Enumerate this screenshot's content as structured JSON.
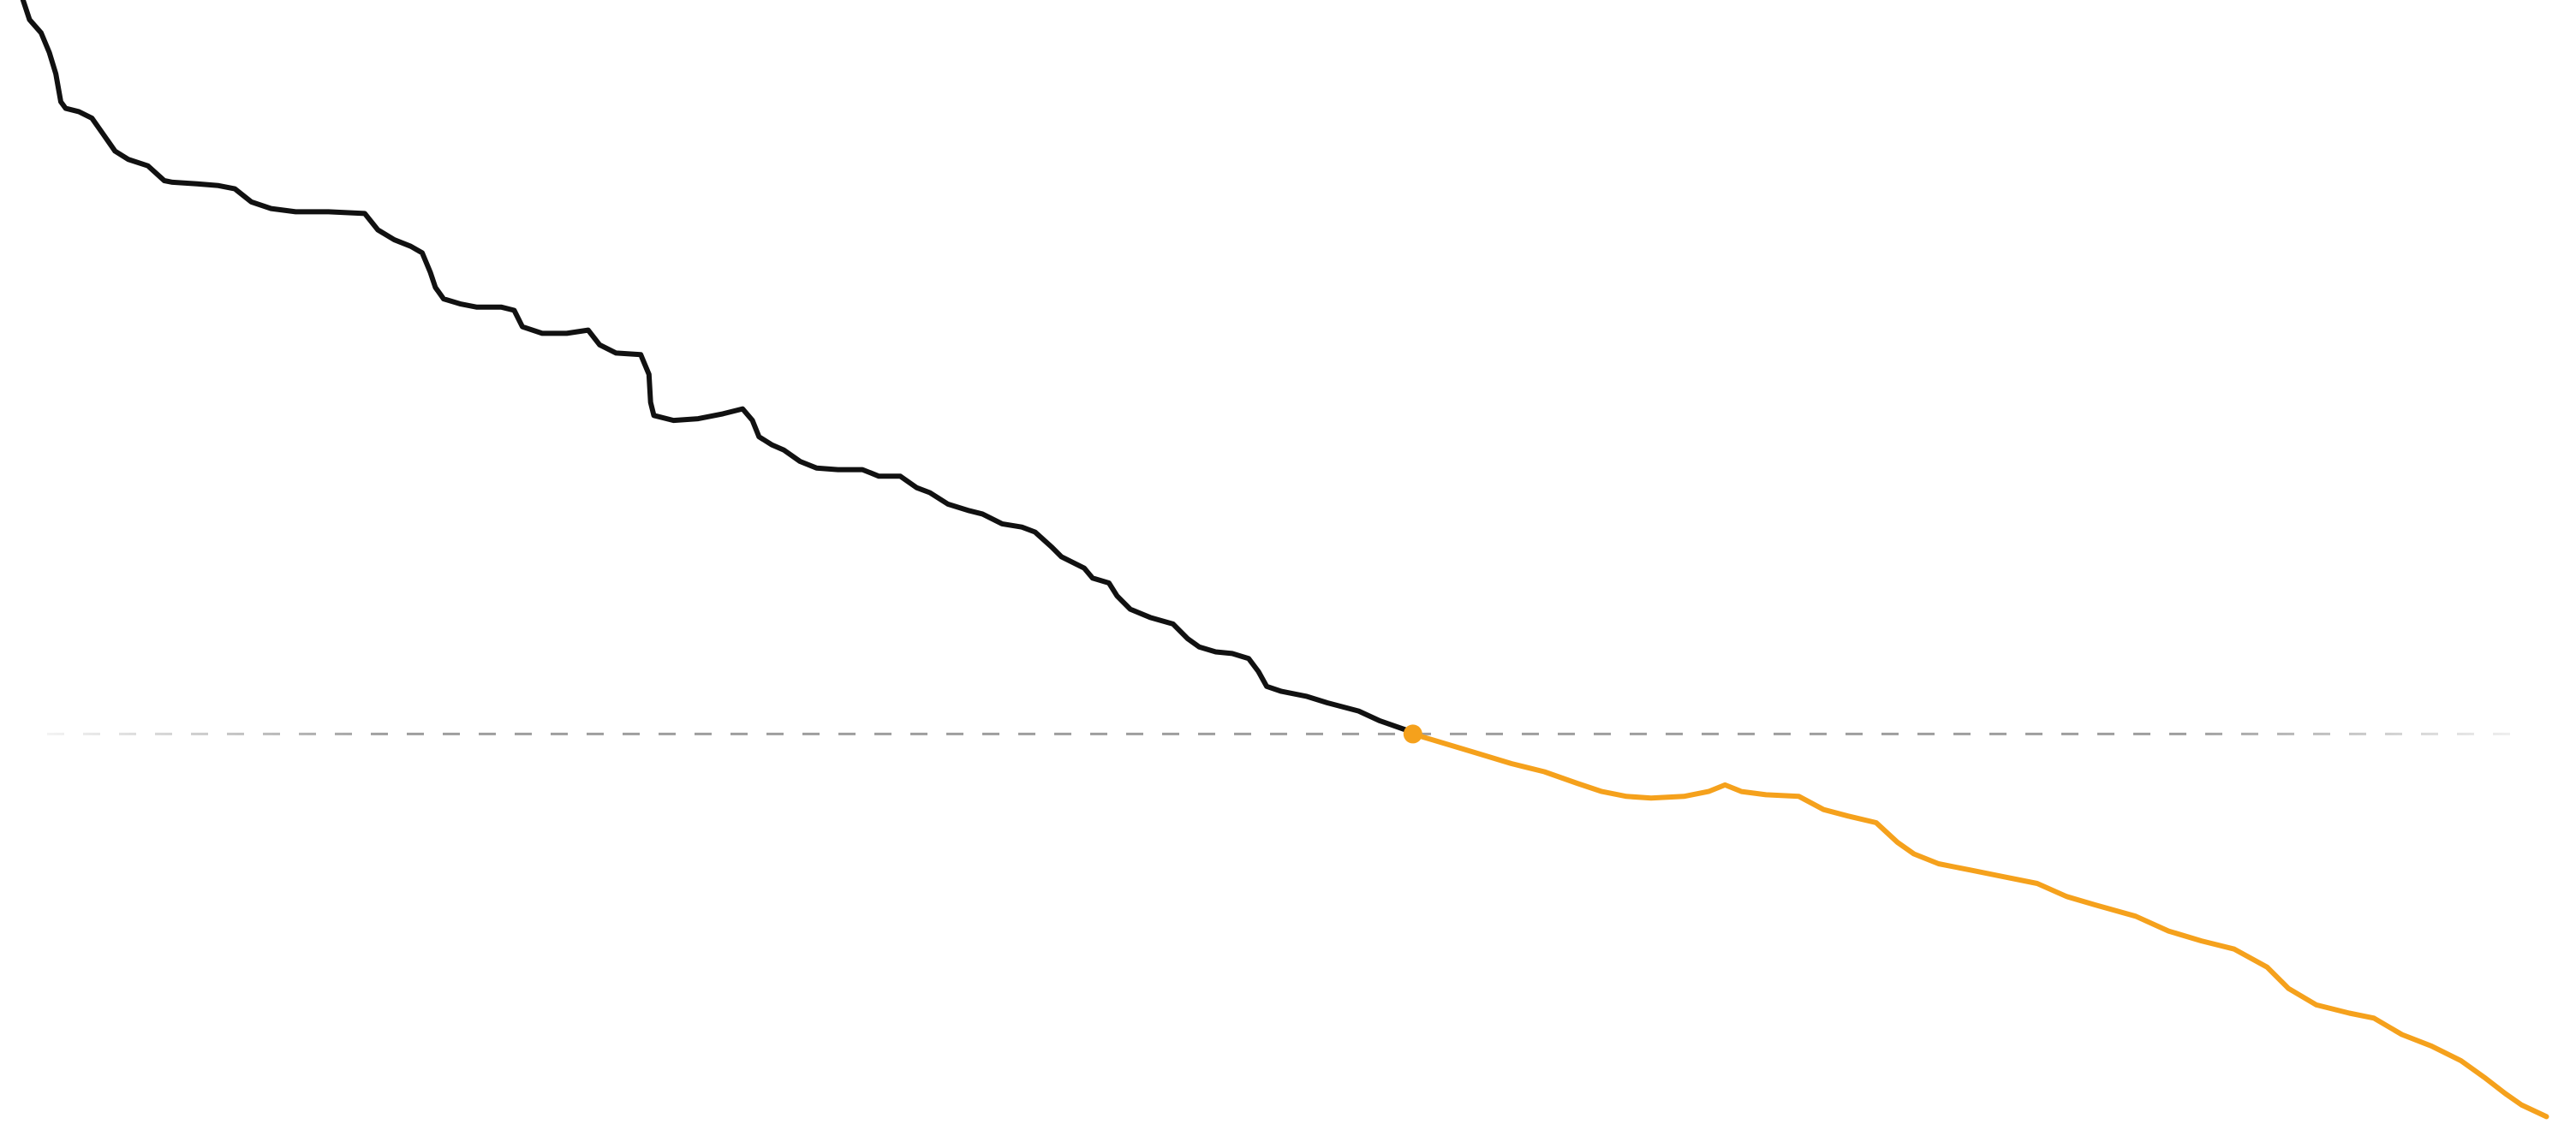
{
  "chart_data": {
    "type": "line",
    "xlim": [
      0,
      1568
    ],
    "ylim": [
      -237.5,
      447
    ],
    "reference_line": {
      "value": 0,
      "color": "#9e9e9e",
      "dashed": true
    },
    "marker": {
      "x": 860,
      "value": 0,
      "color": "#f5a11c"
    },
    "series": [
      {
        "color": "#111111",
        "x": [
          14,
          18,
          25,
          30,
          34,
          37,
          40,
          48,
          56,
          63,
          70,
          78,
          90,
          100,
          105,
          120,
          133,
          143,
          153,
          165,
          180,
          200,
          222,
          230,
          240,
          250,
          257,
          262,
          265,
          270,
          280,
          290,
          305,
          313,
          318,
          330,
          345,
          358,
          365,
          375,
          390,
          395,
          396,
          398,
          410,
          425,
          440,
          452,
          458,
          462,
          470,
          477,
          487,
          497,
          510,
          525,
          535,
          548,
          558,
          566,
          577,
          590,
          598,
          610,
          622,
          630,
          640,
          646,
          660,
          665,
          675,
          680,
          688,
          700,
          714,
          723,
          730,
          740,
          750,
          760,
          766,
          771,
          780,
          795,
          808,
          827,
          840,
          860
        ],
        "values": [
          447,
          435,
          427,
          415,
          402,
          385,
          381,
          379,
          375,
          365,
          355,
          350,
          346,
          337,
          336,
          335,
          334,
          332,
          324,
          320,
          318,
          318,
          317,
          307,
          301,
          297,
          293,
          281,
          272,
          265,
          262,
          260,
          260,
          258,
          248,
          244,
          244,
          246,
          237,
          232,
          231,
          219,
          202,
          194,
          191,
          192,
          195,
          198,
          191,
          181,
          176,
          173,
          166,
          162,
          161,
          161,
          157,
          157,
          150,
          147,
          140,
          136,
          134,
          128,
          126,
          123,
          114,
          108,
          101,
          95,
          92,
          84,
          76,
          71,
          67,
          58,
          53,
          50,
          49,
          46,
          38,
          29,
          26,
          23,
          19,
          14,
          8,
          1
        ]
      },
      {
        "color": "#f5a11c",
        "x": [
          860,
          880,
          900,
          920,
          940,
          960,
          975,
          990,
          1005,
          1025,
          1040,
          1050,
          1060,
          1075,
          1095,
          1110,
          1125,
          1142,
          1155,
          1165,
          1180,
          1200,
          1220,
          1240,
          1258,
          1275,
          1300,
          1320,
          1340,
          1360,
          1380,
          1393,
          1410,
          1430,
          1445,
          1462,
          1480,
          1498,
          1512,
          1525,
          1535,
          1550
        ],
        "values": [
          0,
          -6,
          -12,
          -18,
          -23,
          -30,
          -35,
          -38,
          -39,
          -38,
          -35,
          -31,
          -35,
          -37,
          -38,
          -46,
          -50,
          -54,
          -66,
          -73,
          -79,
          -83,
          -87,
          -91,
          -99,
          -104,
          -111,
          -120,
          -126,
          -131,
          -142,
          -155,
          -165,
          -170,
          -173,
          -183,
          -190,
          -199,
          -209,
          -219,
          -226,
          -233
        ]
      }
    ]
  }
}
